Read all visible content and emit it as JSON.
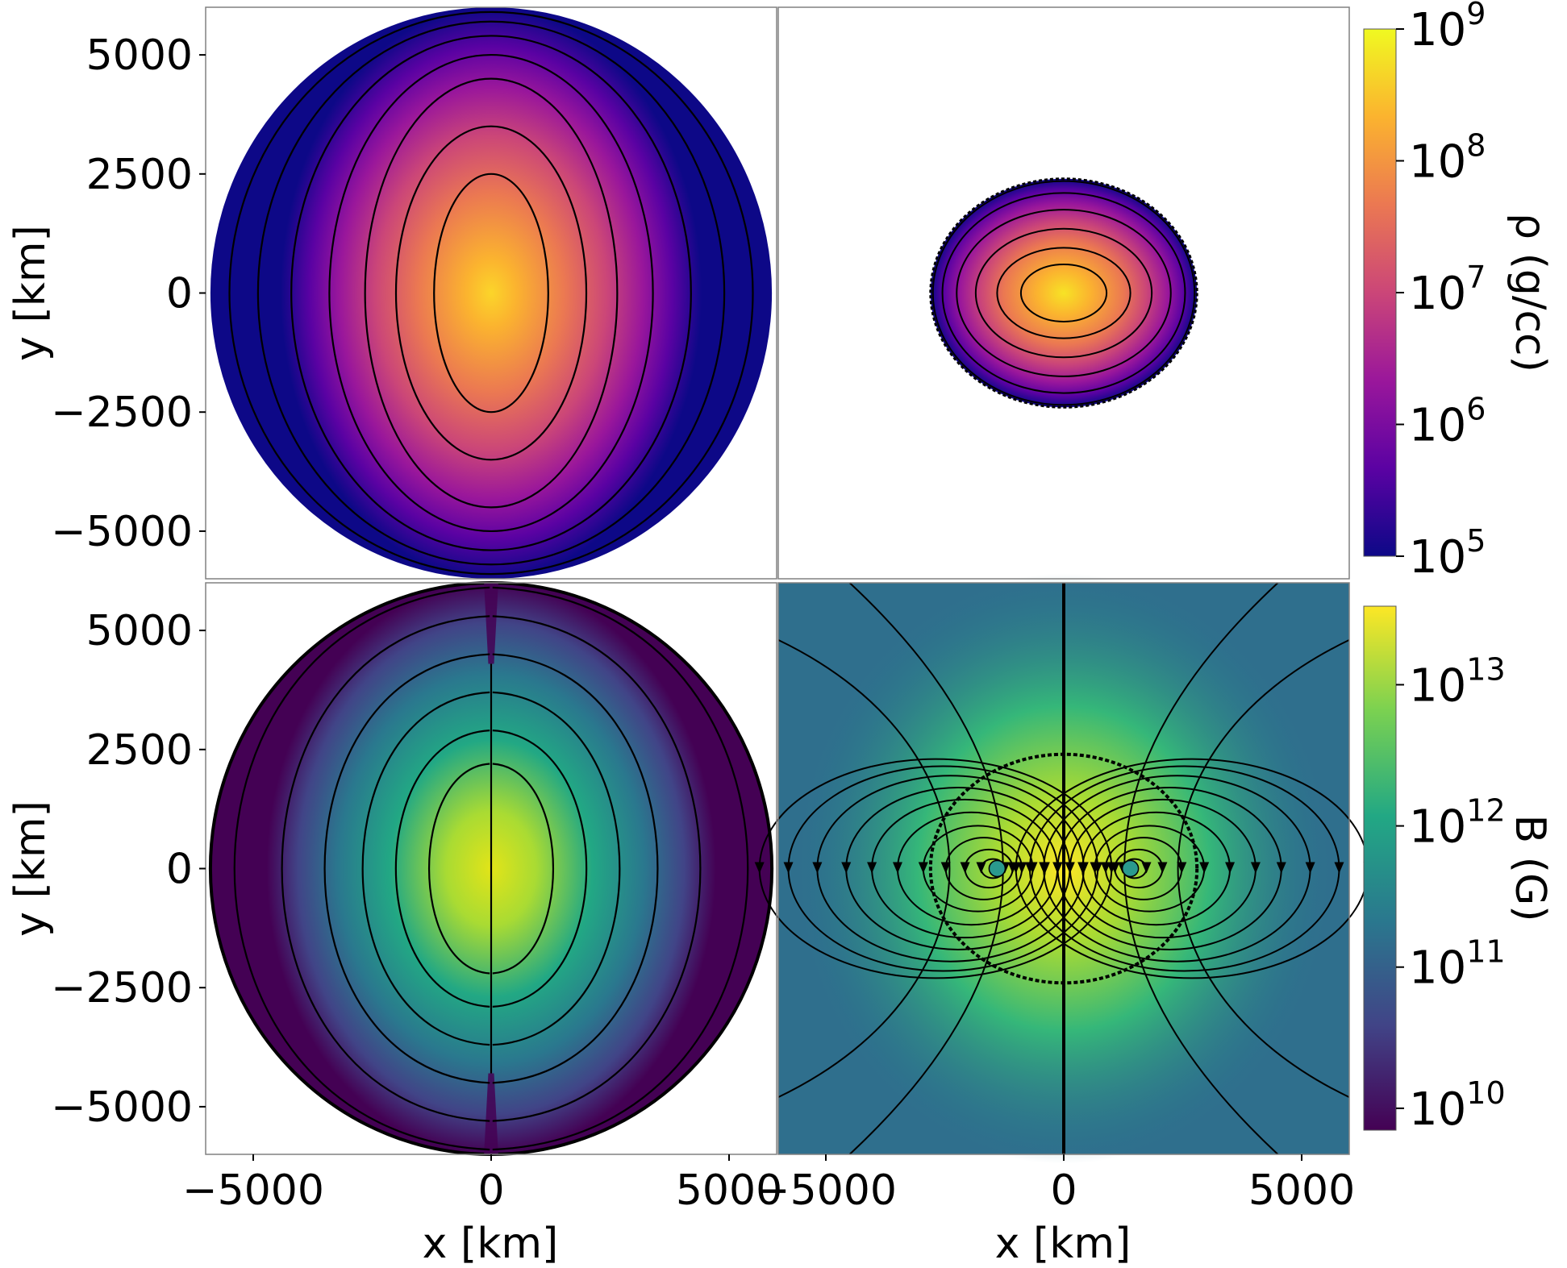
{
  "chart_data": [
    {
      "panel": "top-left",
      "type": "heatmap",
      "quantity": "density",
      "xlim": [
        -6000,
        6000
      ],
      "ylim": [
        -6000,
        6000
      ],
      "xticks": [],
      "yticks": [
        -5000,
        -2500,
        0,
        2500,
        5000
      ],
      "ytick_labels": [
        "−5000",
        "−2500",
        "0",
        "2500",
        "5000"
      ],
      "ylabel": "y [km]",
      "body_shape": "oblate ellipse",
      "body_semi_axes_km": [
        5900,
        6000
      ],
      "contour_levels": 7,
      "contour_semi_axes_km": [
        [
          1200,
          2500
        ],
        [
          2000,
          3500
        ],
        [
          2650,
          4500
        ],
        [
          3400,
          5000
        ],
        [
          4200,
          5400
        ],
        [
          4900,
          5700
        ],
        [
          5500,
          5900
        ]
      ],
      "colormap": "plasma",
      "scale": "log"
    },
    {
      "panel": "top-right",
      "type": "heatmap",
      "quantity": "density",
      "xlim": [
        -6000,
        6000
      ],
      "ylim": [
        -6000,
        6000
      ],
      "xticks": [],
      "yticks": [],
      "body_shape": "ellipse",
      "body_semi_axes_km": [
        2800,
        2400
      ],
      "contour_levels": 6,
      "contour_semi_axes_km": [
        [
          900,
          600
        ],
        [
          1400,
          950
        ],
        [
          1850,
          1350
        ],
        [
          2250,
          1750
        ],
        [
          2550,
          2100
        ],
        [
          2750,
          2350
        ]
      ],
      "colormap": "plasma",
      "scale": "log"
    },
    {
      "panel": "bottom-left",
      "type": "heatmap",
      "quantity": "magnetic field",
      "xlim": [
        -6000,
        6000
      ],
      "ylim": [
        -6000,
        6000
      ],
      "xticks": [
        -5000,
        0,
        5000
      ],
      "xtick_labels": [
        "−5000",
        "0",
        "5000"
      ],
      "yticks": [
        -5000,
        -2500,
        0,
        2500,
        5000
      ],
      "ytick_labels": [
        "−5000",
        "−2500",
        "0",
        "2500",
        "5000"
      ],
      "xlabel": "x [km]",
      "ylabel": "y [km]",
      "field_lines": "dipole-like closed loops, symmetric about x = 0",
      "colormap": "viridis",
      "scale": "log"
    },
    {
      "panel": "bottom-right",
      "type": "heatmap",
      "quantity": "magnetic field",
      "xlim": [
        -6000,
        6000
      ],
      "ylim": [
        -6000,
        6000
      ],
      "xticks": [
        -5000,
        0,
        5000
      ],
      "xtick_labels": [
        "−5000",
        "0",
        "5000"
      ],
      "yticks": [],
      "xlabel": "x [km]",
      "body_outline_semi_axes_km": [
        2800,
        2400
      ],
      "field_lines": "streamlines with arrows; closed loops around two O-points near x = ±1400 km, open lines extending to the domain edge",
      "colormap": "viridis",
      "scale": "log"
    }
  ],
  "colorbars": {
    "density": {
      "label": "ρ (g/cc)",
      "colormap": "plasma",
      "scale": "log",
      "range": [
        100000,
        1000000000
      ],
      "ticks": [
        {
          "value": 100000.0,
          "base": "10",
          "exp": "5"
        },
        {
          "value": 1000000.0,
          "base": "10",
          "exp": "6"
        },
        {
          "value": 10000000.0,
          "base": "10",
          "exp": "7"
        },
        {
          "value": 100000000.0,
          "base": "10",
          "exp": "8"
        },
        {
          "value": 1000000000.0,
          "base": "10",
          "exp": "9"
        }
      ]
    },
    "field": {
      "label": "B (G)",
      "colormap": "viridis",
      "scale": "log",
      "range": [
        7000000000,
        36000000000000
      ],
      "ticks": [
        {
          "value": 10000000000.0,
          "base": "10",
          "exp": "10"
        },
        {
          "value": 100000000000.0,
          "base": "10",
          "exp": "11"
        },
        {
          "value": 1000000000000.0,
          "base": "10",
          "exp": "12"
        },
        {
          "value": 10000000000000.0,
          "base": "10",
          "exp": "13"
        }
      ]
    }
  },
  "colors": {
    "plasma": [
      "#0d0887",
      "#5b02a3",
      "#9a179b",
      "#cb4678",
      "#eb7852",
      "#fbb32f",
      "#f0f921"
    ],
    "viridis": [
      "#440154",
      "#414487",
      "#2a788e",
      "#22a884",
      "#7ad151",
      "#fde725"
    ],
    "line": "#000000",
    "frame": "#808080"
  }
}
